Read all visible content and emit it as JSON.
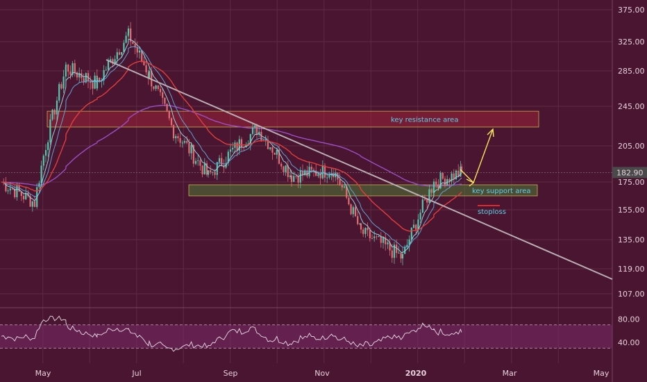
{
  "colors": {
    "background": "#4a1530",
    "grid": "#5e2a44",
    "candle_up": "#55c7ad",
    "candle_down": "#e06f73",
    "ema_fast": "#5aa6d6",
    "ema_slow": "#e03f3a",
    "ma_200": "#9b4fc6",
    "trendline": "#b8b0b4",
    "zone_resistance": "#b0263c",
    "zone_support": "#4f7a3a",
    "price_label": "#4a4a4a",
    "arrow": "#f5e85a",
    "stoploss_line": "#e02a2a",
    "rsi_line": "#e8e0e4",
    "rsi_band": "#7a2c6c"
  },
  "chart_data": {
    "type": "candlestick",
    "series_name": "",
    "last_price": "182.90",
    "y_axis": {
      "ticks": [
        "375.00",
        "325.00",
        "285.00",
        "245.00",
        "205.00",
        "175.00",
        "155.00",
        "135.00",
        "119.00",
        "107.00"
      ],
      "tick_values": [
        375,
        325,
        285,
        245,
        205,
        175,
        155,
        135,
        119,
        107
      ]
    },
    "x_axis": {
      "labels": [
        "May",
        "Jul",
        "Sep",
        "Nov",
        "2020",
        "Mar",
        "May"
      ]
    },
    "ohlc_path": [
      {
        "month": "Apr",
        "close": 175
      },
      {
        "month": "May",
        "close": 160
      },
      {
        "month": "late May",
        "close": 290
      },
      {
        "month": "Jun",
        "close": 270
      },
      {
        "month": "late Jun",
        "close": 335
      },
      {
        "month": "Jul",
        "close": 280
      },
      {
        "month": "Aug",
        "close": 220
      },
      {
        "month": "late Aug",
        "close": 180
      },
      {
        "month": "Sep",
        "close": 222
      },
      {
        "month": "Oct",
        "close": 180
      },
      {
        "month": "Nov",
        "close": 185
      },
      {
        "month": "Dec",
        "close": 140
      },
      {
        "month": "late Dec",
        "close": 125
      },
      {
        "month": "Jan 2020",
        "close": 175
      },
      {
        "month": "late Jan 2020",
        "close": 182.9
      }
    ],
    "zones": [
      {
        "label": "key resistance area",
        "low": 224,
        "high": 240
      },
      {
        "label": "key support area",
        "low": 165,
        "high": 173
      }
    ],
    "annotations": {
      "stoploss_label": "stoploss",
      "stoploss_value": 158
    },
    "rsi": {
      "ticks": [
        "80.00",
        "40.00"
      ],
      "tick_values": [
        80,
        40
      ],
      "upper_band": 70,
      "lower_band": 30
    }
  }
}
